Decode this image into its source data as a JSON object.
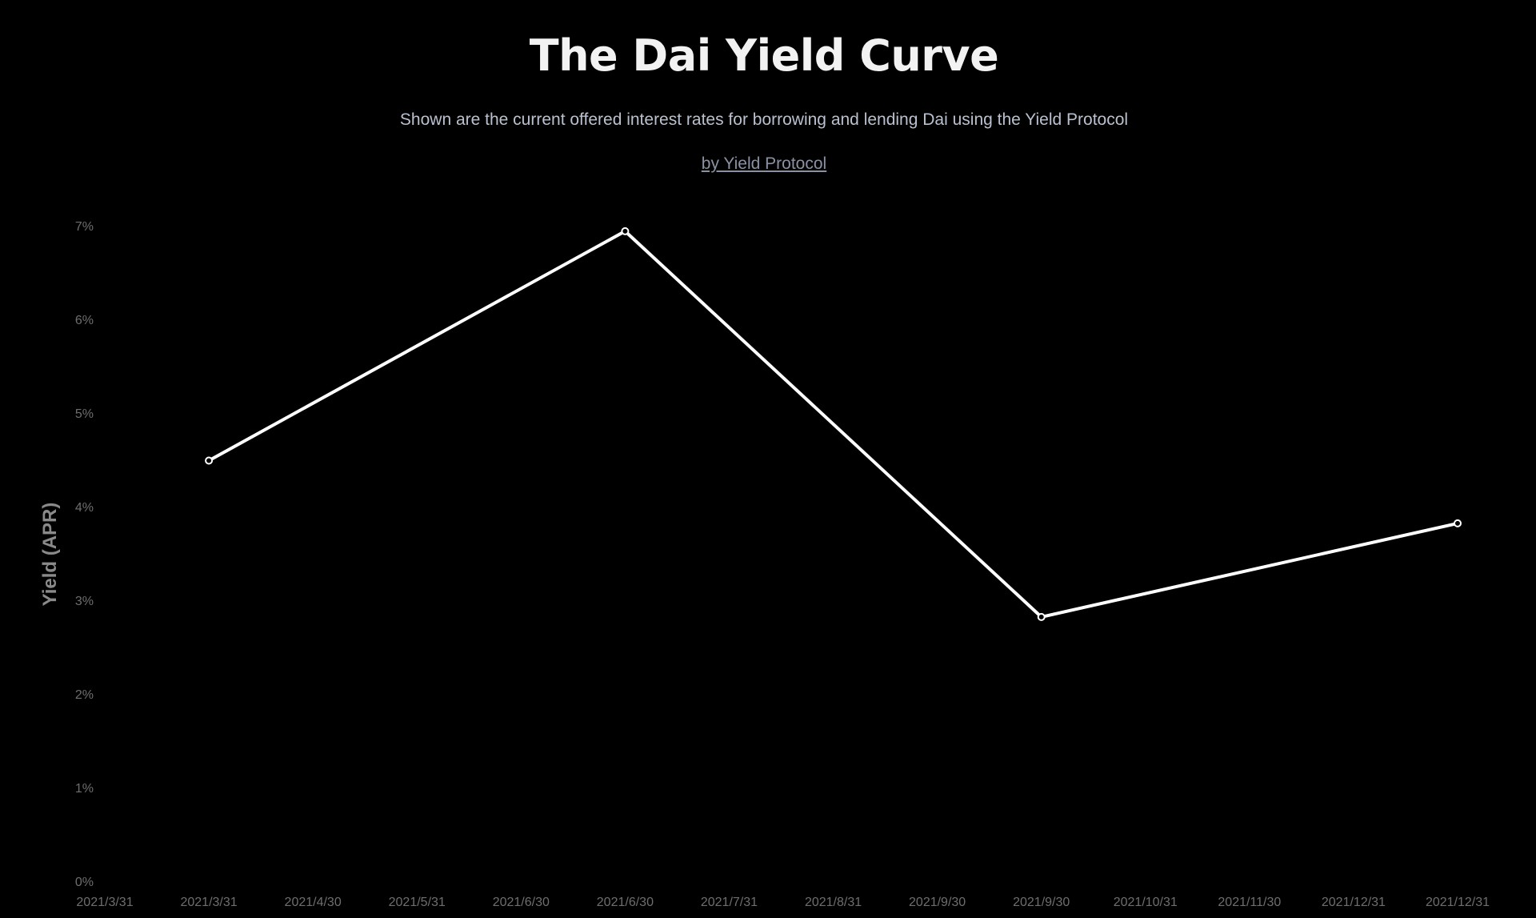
{
  "header": {
    "title": "The Dai Yield Curve",
    "subtitle": "Shown are the current offered interest rates for borrowing and lending Dai using the Yield Protocol",
    "byline": "by Yield Protocol"
  },
  "colors": {
    "background": "#000000",
    "line": "#ffffff",
    "axis_text": "#6e6e6e",
    "ylabel_text": "#8a8a8a"
  },
  "chart_data": {
    "type": "line",
    "title": "The Dai Yield Curve",
    "xlabel": "",
    "ylabel": "Yield (APR)",
    "x_tick_labels": [
      "2021/3/31",
      "2021/3/31",
      "2021/4/30",
      "2021/5/31",
      "2021/6/30",
      "2021/6/30",
      "2021/7/31",
      "2021/8/31",
      "2021/9/30",
      "2021/9/30",
      "2021/10/31",
      "2021/11/30",
      "2021/12/31",
      "2021/12/31"
    ],
    "y_ticks": [
      0,
      1,
      2,
      3,
      4,
      5,
      6,
      7
    ],
    "y_tick_labels": [
      "0%",
      "1%",
      "2%",
      "3%",
      "4%",
      "5%",
      "6%",
      "7%"
    ],
    "ylim": [
      0,
      7
    ],
    "grid": false,
    "legend": "none",
    "series": [
      {
        "points": [
          {
            "x": "2021/3/31",
            "y": 4.5
          },
          {
            "x": "2021/6/30",
            "y": 6.95
          },
          {
            "x": "2021/9/30",
            "y": 2.83
          },
          {
            "x": "2021/12/31",
            "y": 3.83
          }
        ]
      }
    ]
  }
}
